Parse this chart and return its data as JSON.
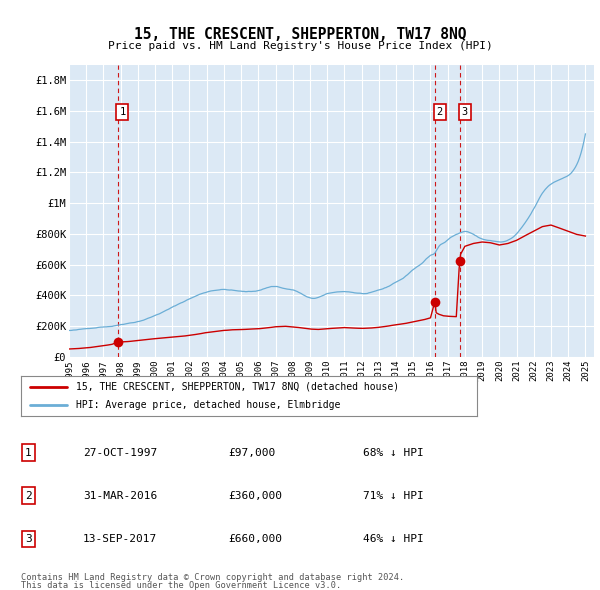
{
  "title": "15, THE CRESCENT, SHEPPERTON, TW17 8NQ",
  "subtitle": "Price paid vs. HM Land Registry's House Price Index (HPI)",
  "footer1": "Contains HM Land Registry data © Crown copyright and database right 2024.",
  "footer2": "This data is licensed under the Open Government Licence v3.0.",
  "legend_line1": "15, THE CRESCENT, SHEPPERTON, TW17 8NQ (detached house)",
  "legend_line2": "HPI: Average price, detached house, Elmbridge",
  "transactions": [
    {
      "label": "1",
      "date": "27-OCT-1997",
      "price": 97000,
      "hpi_pct": "68% ↓ HPI",
      "x": 1997.82
    },
    {
      "label": "2",
      "date": "31-MAR-2016",
      "price": 360000,
      "hpi_pct": "71% ↓ HPI",
      "x": 2016.25
    },
    {
      "label": "3",
      "date": "13-SEP-2017",
      "price": 660000,
      "hpi_pct": "46% ↓ HPI",
      "x": 2017.71
    }
  ],
  "hpi_color": "#6baed6",
  "price_color": "#cc0000",
  "xlim": [
    1995,
    2025.5
  ],
  "ylim": [
    0,
    1900000
  ],
  "yticks": [
    0,
    200000,
    400000,
    600000,
    800000,
    1000000,
    1200000,
    1400000,
    1600000,
    1800000
  ],
  "ytick_labels": [
    "£0",
    "£200K",
    "£400K",
    "£600K",
    "£800K",
    "£1M",
    "£1.2M",
    "£1.4M",
    "£1.6M",
    "£1.8M"
  ],
  "xticks": [
    1995,
    1996,
    1997,
    1998,
    1999,
    2000,
    2001,
    2002,
    2003,
    2004,
    2005,
    2006,
    2007,
    2008,
    2009,
    2010,
    2011,
    2012,
    2013,
    2014,
    2015,
    2016,
    2017,
    2018,
    2019,
    2020,
    2021,
    2022,
    2023,
    2024,
    2025
  ],
  "bg_color": "#dce9f5",
  "outer_bg": "#ffffff",
  "vline_color": "#cc0000",
  "grid_color": "#ffffff",
  "table_rows": [
    [
      "1",
      "27-OCT-1997",
      "£97,000",
      "68% ↓ HPI"
    ],
    [
      "2",
      "31-MAR-2016",
      "£360,000",
      "71% ↓ HPI"
    ],
    [
      "3",
      "13-SEP-2017",
      "£660,000",
      "46% ↓ HPI"
    ]
  ]
}
